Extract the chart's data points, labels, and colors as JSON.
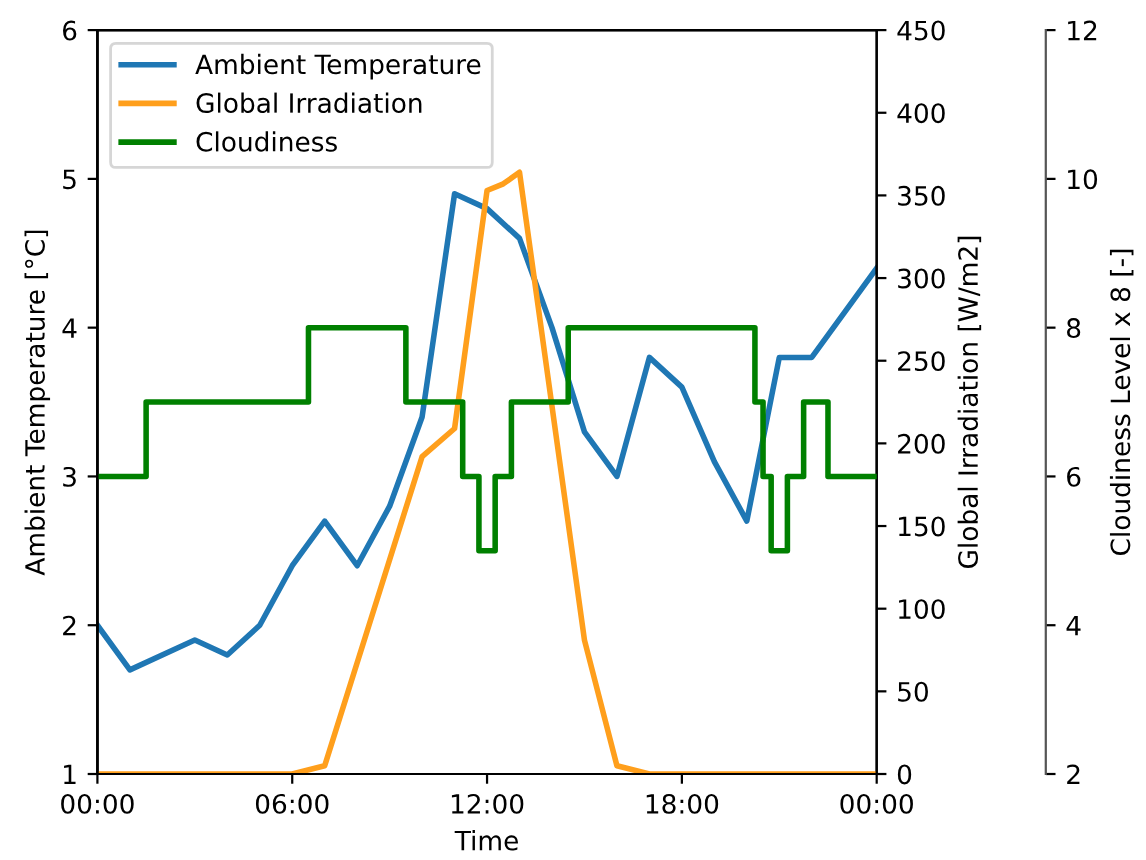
{
  "chart_data": {
    "type": "line",
    "xlabel": "Time",
    "ylabel": "Ambient Temperature [°C]",
    "y2label": "Global Irradiation [W/m2]",
    "y3label": "Cloudiness Level x 8 [-]",
    "xlim": [
      0,
      24
    ],
    "xticks": [
      {
        "value": 0,
        "label": "00:00"
      },
      {
        "value": 6,
        "label": "06:00"
      },
      {
        "value": 12,
        "label": "12:00"
      },
      {
        "value": 18,
        "label": "18:00"
      },
      {
        "value": 24,
        "label": "00:00"
      }
    ],
    "ylim": [
      1,
      6
    ],
    "yticks": [
      1,
      2,
      3,
      4,
      5,
      6
    ],
    "y2lim": [
      0,
      450
    ],
    "y2ticks": [
      0,
      50,
      100,
      150,
      200,
      250,
      300,
      350,
      400,
      450
    ],
    "y3lim": [
      2,
      12
    ],
    "y3ticks": [
      2,
      4,
      6,
      8,
      10,
      12
    ],
    "legend": "top left",
    "grid": false,
    "series": [
      {
        "name": "Ambient Temperature",
        "color": "#1f77b4",
        "x": [
          0,
          1,
          3,
          4,
          5,
          6,
          7,
          8,
          9,
          10,
          11,
          12,
          13,
          14,
          15,
          16,
          17,
          18,
          19,
          20,
          21,
          22,
          24
        ],
        "values": [
          2.0,
          1.7,
          1.9,
          1.8,
          2.0,
          2.4,
          2.7,
          2.4,
          2.8,
          3.4,
          4.9,
          4.8,
          4.6,
          4.0,
          3.3,
          3.0,
          3.8,
          3.6,
          3.1,
          2.7,
          3.8,
          3.8,
          4.4
        ]
      },
      {
        "name": "Global Irradiation",
        "color": "#ff9f1c",
        "axis": "y2",
        "x": [
          0,
          6,
          7,
          10,
          11,
          12,
          12.5,
          13,
          15,
          16,
          17,
          24
        ],
        "values": [
          0,
          0,
          5,
          192,
          209,
          353,
          357,
          364,
          81,
          5,
          0,
          0
        ]
      },
      {
        "name": "Cloudiness",
        "color": "#008000",
        "type": "step",
        "axis": "y3",
        "x": [
          0,
          1.5,
          6.5,
          9.5,
          11.25,
          11.75,
          12.25,
          12.75,
          14.5,
          20.25,
          20.5,
          20.75,
          21.25,
          21.75,
          22.5,
          24
        ],
        "values": [
          6,
          7,
          8,
          7,
          6,
          5,
          6,
          7,
          8,
          7,
          6,
          5,
          6,
          7,
          6,
          6
        ]
      }
    ]
  }
}
